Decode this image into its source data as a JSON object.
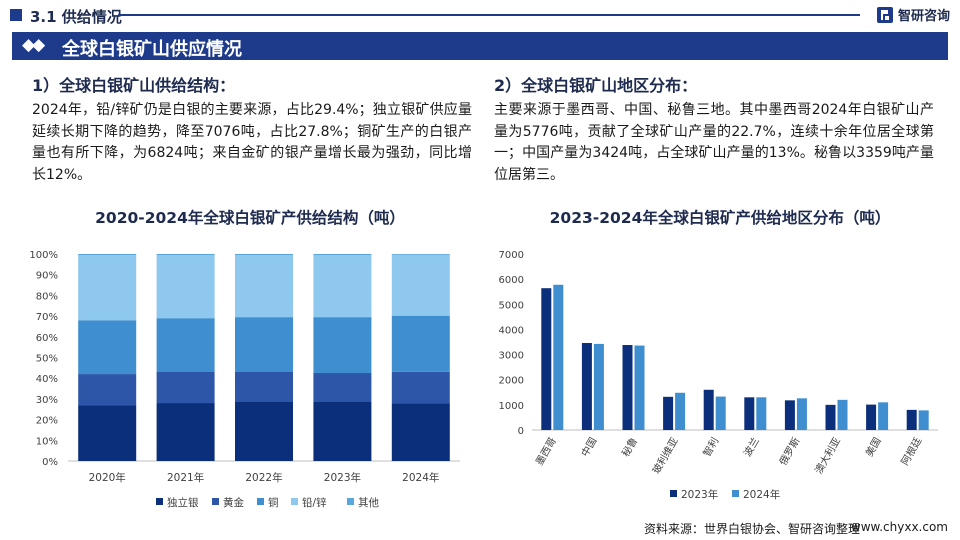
{
  "header": {
    "section_label": "3.1 供给情况",
    "brand_name": "智研咨询"
  },
  "banner": {
    "title": "全球白银矿山供应情况"
  },
  "left": {
    "heading": "1）全球白银矿山供给结构：",
    "paragraph": "2024年，铅/锌矿仍是白银的主要来源，占比29.4%；独立银矿供应量延续长期下降的趋势，降至7076吨，占比27.8%；铜矿生产的白银产量也有所下降，为6824吨；来自金矿的银产量增长最为强劲，同比增长12%。"
  },
  "right": {
    "heading": "2）全球白银矿山地区分布：",
    "paragraph": "主要来源于墨西哥、中国、秘鲁三地。其中墨西哥2024年白银矿山产量为5776吨，贡献了全球矿山产量的22.7%，连续十余年位居全球第一；中国产量为3424吨，占全球矿山产量的13%。秘鲁以3359吨产量位居第三。"
  },
  "chart_data": [
    {
      "type": "bar",
      "stacked": true,
      "percent": true,
      "title": "2020-2024年全球白银矿产供给结构（吨）",
      "categories": [
        "2020年",
        "2021年",
        "2022年",
        "2023年",
        "2024年"
      ],
      "series": [
        {
          "name": "独立银",
          "color": "#0b2f7a",
          "values": [
            27,
            28,
            28.5,
            28.5,
            27.8
          ]
        },
        {
          "name": "黄金",
          "color": "#2e56a8",
          "values": [
            15,
            15,
            14.5,
            14,
            15.3
          ]
        },
        {
          "name": "铜",
          "color": "#3f8ed0",
          "values": [
            26,
            26,
            26.5,
            27,
            27.1
          ]
        },
        {
          "name": "铅/锌",
          "color": "#8ec8ee",
          "values": [
            31.5,
            30.5,
            30,
            30,
            29.4
          ]
        },
        {
          "name": "其他",
          "color": "#5aa7dc",
          "values": [
            0.5,
            0.5,
            0.5,
            0.5,
            0.4
          ]
        }
      ],
      "yticks": [
        "0%",
        "10%",
        "20%",
        "30%",
        "40%",
        "50%",
        "60%",
        "70%",
        "80%",
        "90%",
        "100%"
      ],
      "ylim": [
        0,
        100
      ]
    },
    {
      "type": "bar",
      "title": "2023-2024年全球白银矿产供给地区分布（吨）",
      "categories": [
        "墨西哥",
        "中国",
        "秘鲁",
        "玻利维亚",
        "智利",
        "波兰",
        "俄罗斯",
        "澳大利亚",
        "美国",
        "阿根廷"
      ],
      "series": [
        {
          "name": "2023年",
          "color": "#0b2f7a",
          "values": [
            5640,
            3460,
            3380,
            1320,
            1600,
            1300,
            1180,
            1000,
            1010,
            800
          ]
        },
        {
          "name": "2024年",
          "color": "#3f8ed0",
          "values": [
            5776,
            3424,
            3359,
            1480,
            1330,
            1300,
            1260,
            1200,
            1100,
            780
          ]
        }
      ],
      "yticks": [
        "0",
        "1000",
        "2000",
        "3000",
        "4000",
        "5000",
        "6000",
        "7000"
      ],
      "ylim": [
        0,
        7000
      ]
    }
  ],
  "footer": {
    "source": "资料来源：世界白银协会、智研咨询整理",
    "url": "www.chyxx.com"
  }
}
